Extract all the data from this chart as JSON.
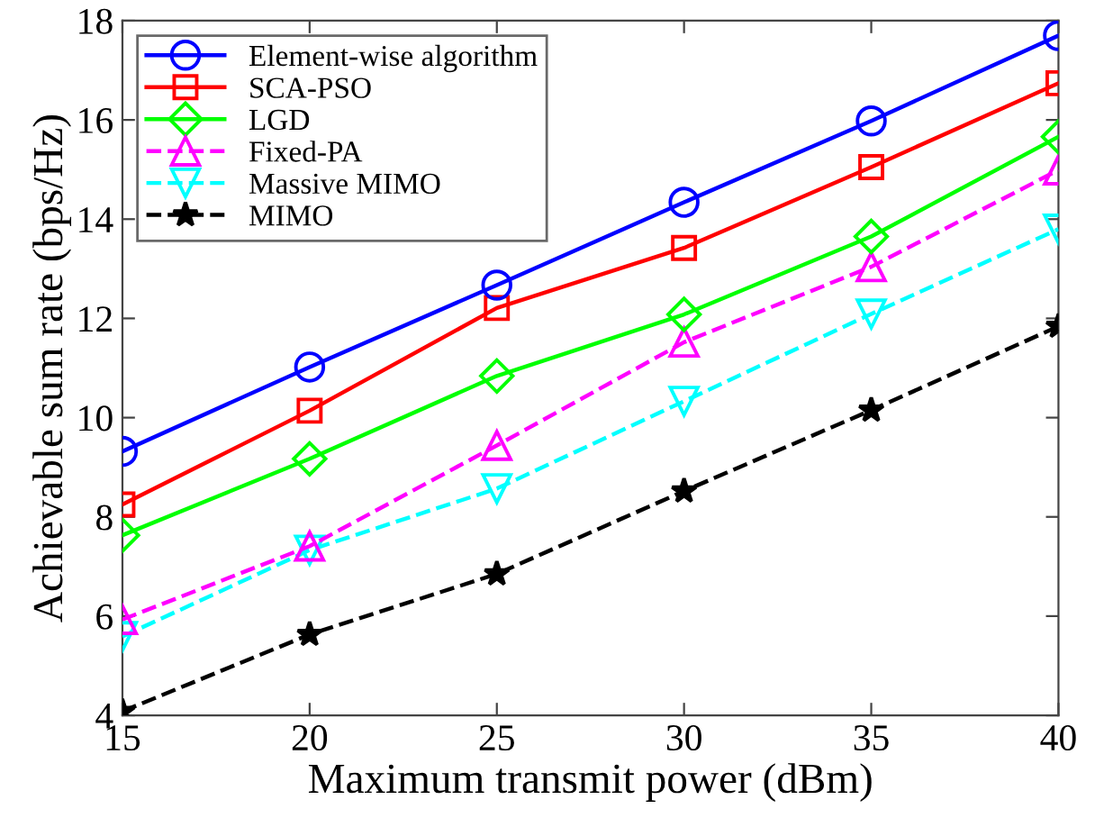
{
  "chart_data": {
    "type": "line",
    "xlabel": "Maximum transmit power (dBm)",
    "ylabel": "Achievable sum rate (bps/Hz)",
    "x": [
      15,
      20,
      25,
      30,
      35,
      40
    ],
    "xlim": [
      15,
      40
    ],
    "xticks": [
      15,
      20,
      25,
      30,
      35,
      40
    ],
    "ylim": [
      4,
      18
    ],
    "yticks": [
      4,
      6,
      8,
      10,
      12,
      14,
      16,
      18
    ],
    "grid": false,
    "legend": "top left",
    "series": [
      {
        "name": "Element-wise algorithm",
        "color": "#0000ff",
        "marker": "circle",
        "line_style": "solid",
        "values": [
          9.32,
          11.02,
          12.67,
          14.34,
          15.98,
          17.7
        ]
      },
      {
        "name": "SCA-PSO",
        "color": "#ff0000",
        "marker": "square",
        "line_style": "solid",
        "values": [
          8.25,
          10.14,
          12.21,
          13.42,
          15.05,
          16.74
        ]
      },
      {
        "name": "LGD",
        "color": "#00ff00",
        "marker": "diamond",
        "line_style": "solid",
        "values": [
          7.63,
          9.17,
          10.84,
          12.08,
          13.65,
          15.66
        ]
      },
      {
        "name": "Fixed-PA",
        "color": "#ff00ff",
        "marker": "triangle",
        "line_style": "dashed",
        "values": [
          5.93,
          7.41,
          9.44,
          11.52,
          13.04,
          14.99
        ]
      },
      {
        "name": "Massive MIMO",
        "color": "#00ffff",
        "marker": "triangle_down",
        "line_style": "dashed",
        "values": [
          5.59,
          7.33,
          8.57,
          10.33,
          12.09,
          13.8
        ]
      },
      {
        "name": "MIMO",
        "color": "#000000",
        "marker": "star",
        "line_style": "dashed",
        "values": [
          4.08,
          5.63,
          6.85,
          8.52,
          10.15,
          11.84
        ]
      }
    ]
  }
}
